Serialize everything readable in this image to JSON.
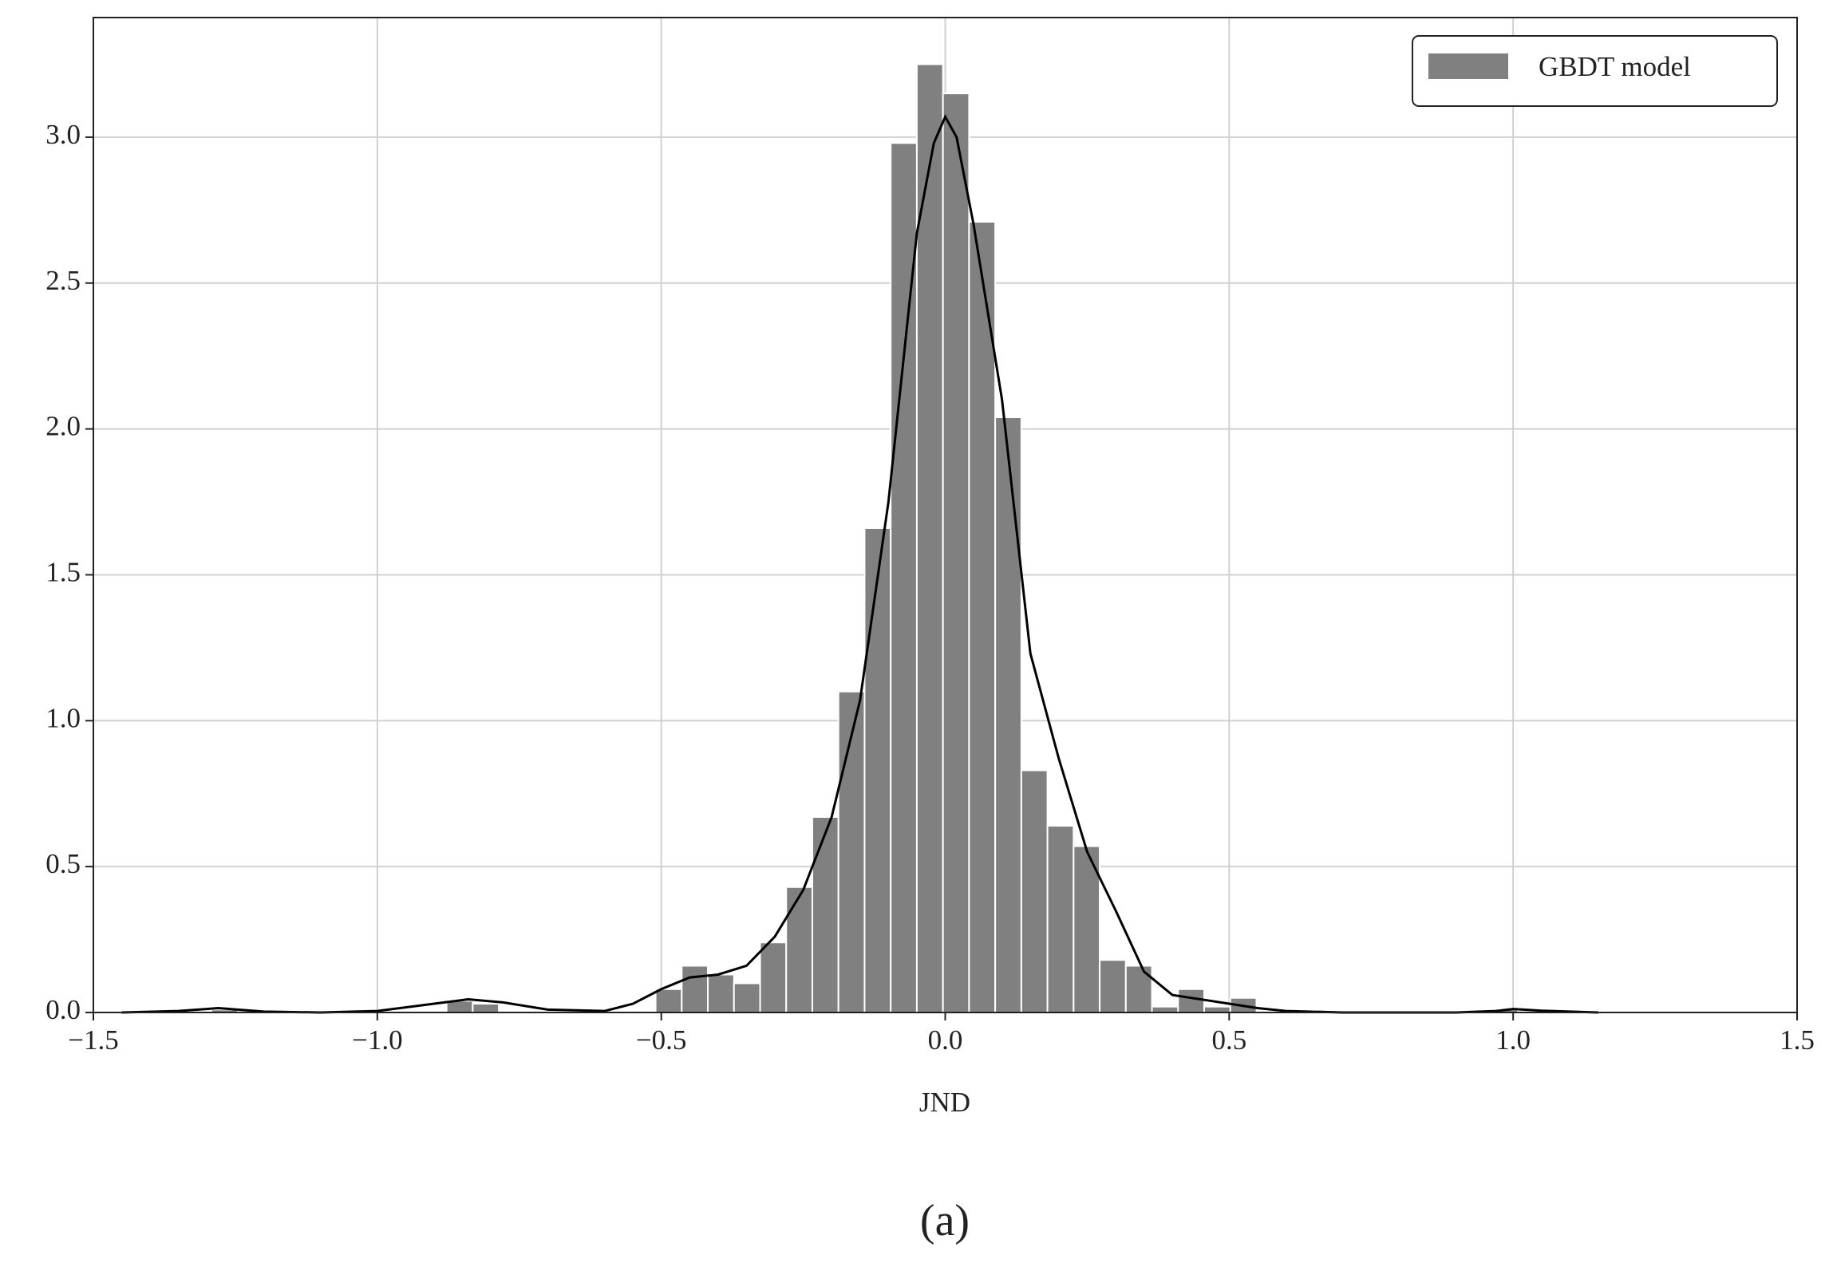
{
  "chart_data": {
    "type": "histogram",
    "xlabel": "JND",
    "caption": "(a)",
    "bins": [
      -1.338,
      -1.292,
      -1.246,
      -1.2,
      -1.154,
      -1.108,
      -1.062,
      -1.016,
      -0.97,
      -0.924,
      -0.878,
      -0.832,
      -0.786,
      -0.74,
      -0.694,
      -0.648,
      -0.602,
      -0.556,
      -0.51,
      -0.464,
      -0.418,
      -0.372,
      -0.326,
      -0.28,
      -0.234,
      -0.188,
      -0.142,
      -0.096,
      -0.05,
      -0.004,
      0.042,
      0.088,
      0.134,
      0.18,
      0.226,
      0.272,
      0.318,
      0.364,
      0.41,
      0.456,
      0.502,
      0.548,
      0.594,
      0.64,
      0.686,
      0.732,
      0.778,
      0.824,
      0.87,
      0.916,
      0.962,
      1.008,
      1.054
    ],
    "series": [
      {
        "name": "GBDT model",
        "color": "#808080",
        "values": [
          0,
          0.01,
          0,
          0,
          0,
          0,
          0,
          0,
          0,
          0,
          0.04,
          0.03,
          0,
          0,
          0,
          0,
          0,
          0,
          0.08,
          0.16,
          0.13,
          0.1,
          0.24,
          0.43,
          0.67,
          1.1,
          1.66,
          2.98,
          3.25,
          3.15,
          2.71,
          2.04,
          0.83,
          0.64,
          0.57,
          0.18,
          0.16,
          0.02,
          0.08,
          0.02,
          0.05,
          0,
          0,
          0,
          0,
          0,
          0,
          0,
          0,
          0,
          0.01,
          0
        ]
      }
    ],
    "kde": {
      "color": "#000000",
      "x": [
        -1.45,
        -1.35,
        -1.28,
        -1.2,
        -1.1,
        -1.0,
        -0.9,
        -0.84,
        -0.78,
        -0.7,
        -0.6,
        -0.55,
        -0.5,
        -0.45,
        -0.4,
        -0.35,
        -0.3,
        -0.25,
        -0.2,
        -0.15,
        -0.1,
        -0.05,
        -0.02,
        0,
        0.02,
        0.05,
        0.1,
        0.15,
        0.2,
        0.25,
        0.3,
        0.35,
        0.4,
        0.5,
        0.55,
        0.6,
        0.7,
        0.9,
        0.97,
        1.0,
        1.05,
        1.15
      ],
      "y": [
        0,
        0.005,
        0.015,
        0.003,
        0,
        0.005,
        0.03,
        0.045,
        0.035,
        0.01,
        0.005,
        0.03,
        0.08,
        0.12,
        0.13,
        0.16,
        0.26,
        0.42,
        0.67,
        1.07,
        1.75,
        2.67,
        2.98,
        3.07,
        3.0,
        2.7,
        2.1,
        1.23,
        0.87,
        0.55,
        0.35,
        0.14,
        0.06,
        0.03,
        0.015,
        0.005,
        0,
        0,
        0.005,
        0.012,
        0.006,
        0
      ]
    },
    "xlim": [
      -1.5,
      1.5
    ],
    "ylim": [
      0,
      3.41
    ],
    "xticks": [
      {
        "value": -1.5,
        "label": "−1.5"
      },
      {
        "value": -1.0,
        "label": "−1.0"
      },
      {
        "value": -0.5,
        "label": "−0.5"
      },
      {
        "value": 0,
        "label": "0.0"
      },
      0.5,
      {
        "value": 1,
        "label": "1.0"
      },
      1.5
    ],
    "yticks": [
      {
        "value": 0,
        "label": "0.0"
      },
      0.5,
      {
        "value": 1,
        "label": "1.0"
      },
      1.5,
      {
        "value": 2,
        "label": "2.0"
      },
      2.5,
      {
        "value": 3,
        "label": "3.0"
      }
    ],
    "grid": true,
    "legend": "upper-right"
  }
}
